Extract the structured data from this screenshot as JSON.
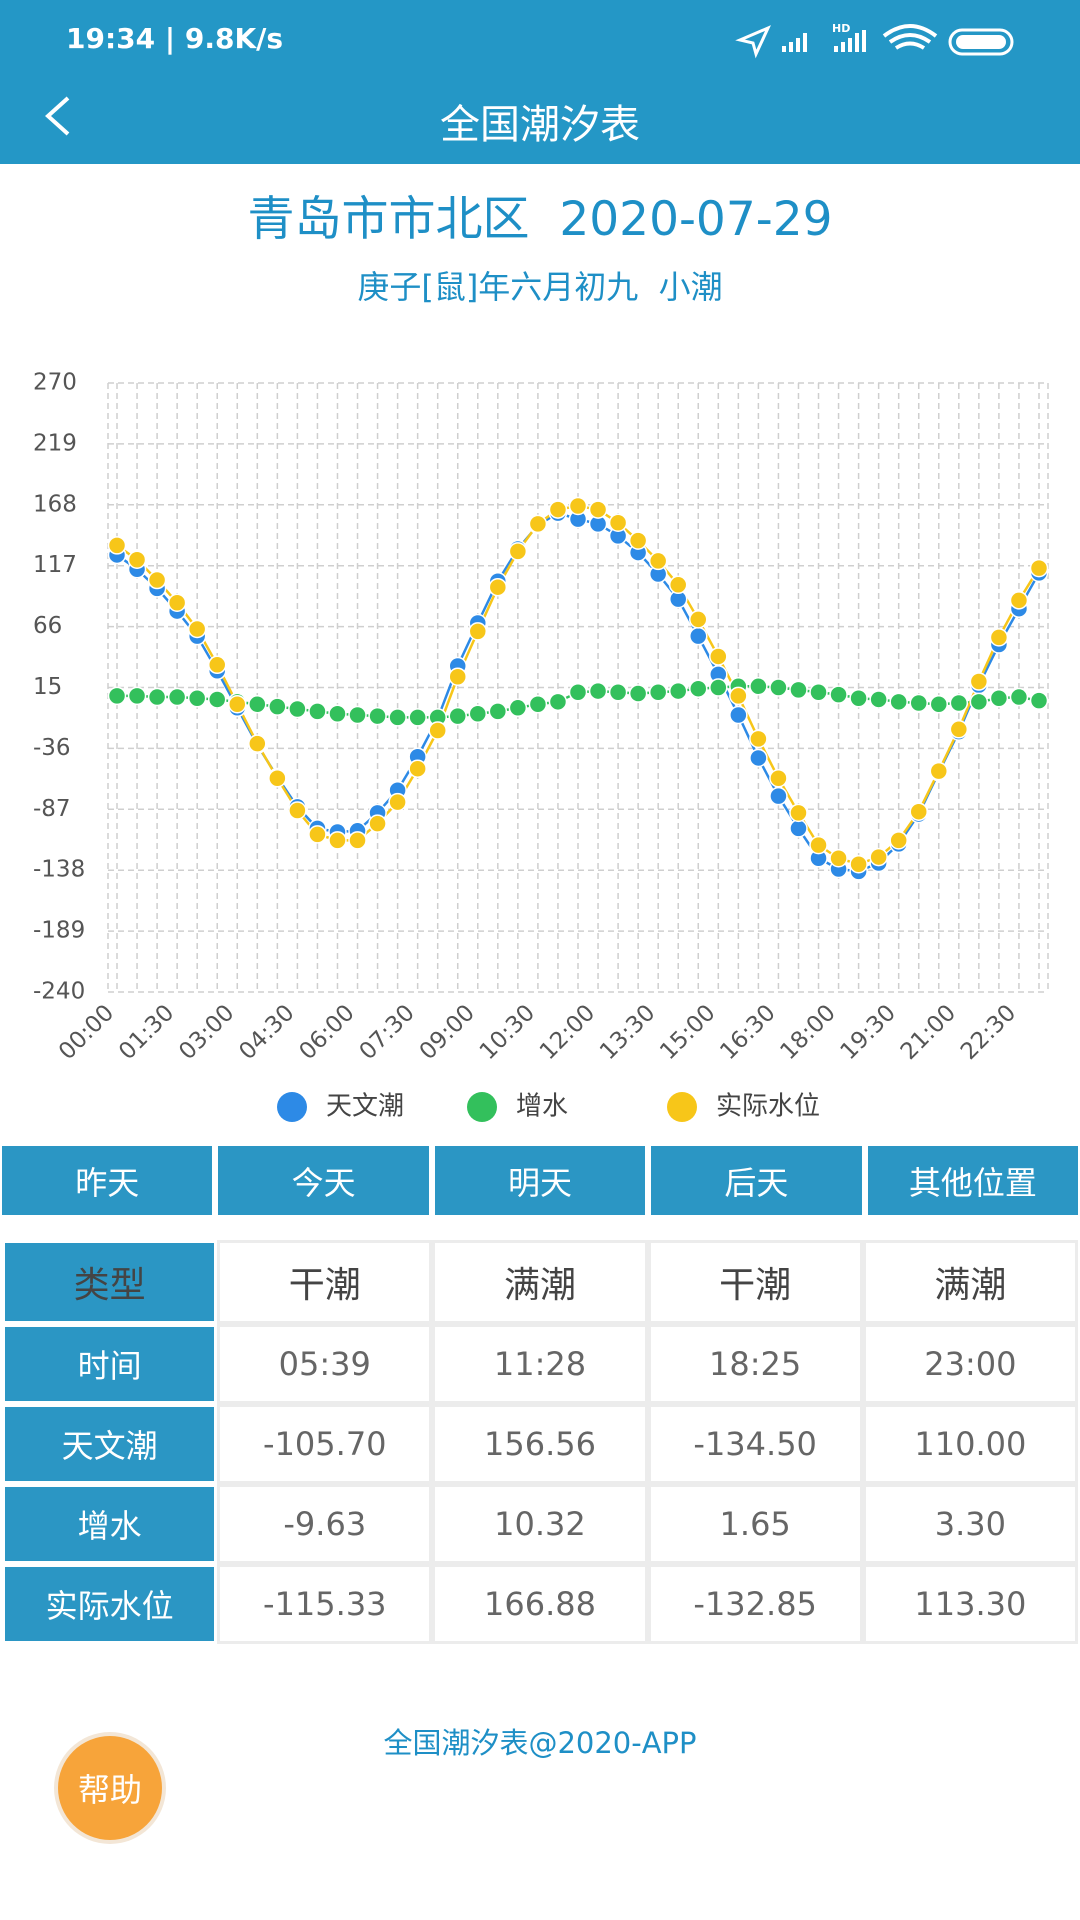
{
  "status_bar": {
    "time": "19:34 | 9.8K/s",
    "hd": "HD"
  },
  "app_bar": {
    "title": "全国潮汐表"
  },
  "header": {
    "title": "青岛市市北区  2020-07-29",
    "subtitle": "庚子[鼠]年六月初九  小潮"
  },
  "chart_data": {
    "type": "line",
    "categories": [
      "00:00",
      null,
      null,
      "01:30",
      null,
      null,
      "03:00",
      null,
      null,
      "04:30",
      null,
      null,
      "06:00",
      null,
      null,
      "07:30",
      null,
      null,
      "09:00",
      null,
      null,
      "10:30",
      null,
      null,
      "12:00",
      null,
      null,
      "13:30",
      null,
      null,
      "15:00",
      null,
      null,
      "16:30",
      null,
      null,
      "18:00",
      null,
      null,
      "19:30",
      null,
      null,
      "21:00",
      null,
      null,
      "22:30",
      null
    ],
    "series": [
      {
        "name": "天文潮",
        "color": "#2d8ae6",
        "values": [
          126,
          114,
          98,
          79,
          58,
          29,
          -2,
          -33,
          -60,
          -85,
          -103,
          -106,
          -105,
          -90,
          -71,
          -43,
          -11,
          33,
          69,
          104,
          131,
          151,
          161,
          156,
          152,
          142,
          128,
          110,
          89,
          58,
          26,
          -8,
          -44,
          -76,
          -103,
          -128,
          -137,
          -139,
          -132,
          -116,
          -91,
          -56,
          -22,
          17,
          51,
          81,
          111
        ]
      },
      {
        "name": "增水",
        "color": "#33c05c",
        "values": [
          8,
          8,
          7,
          7,
          6,
          5,
          3,
          1,
          -1,
          -3,
          -5,
          -7,
          -8,
          -9,
          -10,
          -10,
          -10,
          -9,
          -7,
          -5,
          -2,
          1,
          3,
          11,
          12,
          11,
          10,
          11,
          12,
          14,
          15,
          16,
          16,
          15,
          13,
          11,
          9,
          6,
          5,
          3,
          2,
          1,
          2,
          3,
          6,
          7,
          4
        ]
      },
      {
        "name": "实际水位",
        "color": "#f7c619",
        "values": [
          134,
          122,
          105,
          86,
          64,
          34,
          1,
          -32,
          -61,
          -88,
          -108,
          -113,
          -113,
          -99,
          -81,
          -53,
          -21,
          24,
          62,
          99,
          129,
          152,
          164,
          167,
          164,
          153,
          138,
          121,
          101,
          72,
          41,
          8,
          -28,
          -61,
          -90,
          -117,
          -128,
          -133,
          -127,
          -113,
          -89,
          -55,
          -20,
          20,
          57,
          88,
          115
        ]
      }
    ],
    "ylim": [
      -240,
      270
    ],
    "yticks": [
      -240,
      -189,
      -138,
      -87,
      -36,
      15,
      66,
      117,
      168,
      219,
      270
    ],
    "grid": true,
    "legend": "bottom"
  },
  "tabs": [
    "昨天",
    "今天",
    "明天",
    "后天",
    "其他位置"
  ],
  "table": {
    "rows": [
      [
        "类型",
        "干潮",
        "满潮",
        "干潮",
        "满潮"
      ],
      [
        "时间",
        "05:39",
        "11:28",
        "18:25",
        "23:00"
      ],
      [
        "天文潮",
        "-105.70",
        "156.56",
        "-134.50",
        "110.00"
      ],
      [
        "增水",
        "-9.63",
        "10.32",
        "1.65",
        "3.30"
      ],
      [
        "实际水位",
        "-115.33",
        "166.88",
        "-132.85",
        "113.30"
      ]
    ]
  },
  "footer": "全国潮汐表@2020-APP",
  "help_button": "帮助"
}
